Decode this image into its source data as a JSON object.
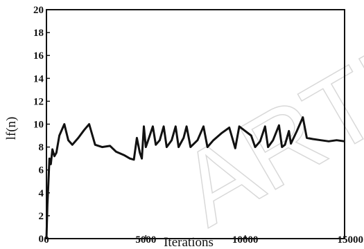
{
  "watermark": "ARTI",
  "chart_data": {
    "type": "line",
    "title": "",
    "xlabel": "Iterations",
    "ylabel": "lf(n)",
    "xlim": [
      0,
      15000
    ],
    "ylim": [
      0,
      20
    ],
    "grid": false,
    "x_ticks": [
      "0",
      "5000",
      "10000",
      "15000"
    ],
    "y_ticks": [
      "0",
      "2",
      "4",
      "6",
      "8",
      "10",
      "12",
      "14",
      "16",
      "18",
      "20"
    ],
    "series": [
      {
        "points": [
          [
            0,
            0
          ],
          [
            50,
            3
          ],
          [
            100,
            5
          ],
          [
            150,
            7
          ],
          [
            220,
            6.5
          ],
          [
            300,
            7.8
          ],
          [
            400,
            7.2
          ],
          [
            500,
            7.5
          ],
          [
            650,
            9
          ],
          [
            900,
            10
          ],
          [
            1100,
            8.6
          ],
          [
            1300,
            8.2
          ],
          [
            1600,
            8.8
          ],
          [
            1900,
            9.5
          ],
          [
            2150,
            10
          ],
          [
            2450,
            8.2
          ],
          [
            2800,
            8
          ],
          [
            3200,
            8.1
          ],
          [
            3500,
            7.6
          ],
          [
            3900,
            7.3
          ],
          [
            4200,
            7
          ],
          [
            4400,
            6.9
          ],
          [
            4550,
            8.8
          ],
          [
            4700,
            7.5
          ],
          [
            4800,
            7
          ],
          [
            4900,
            9.8
          ],
          [
            5000,
            8
          ],
          [
            5100,
            8.5
          ],
          [
            5350,
            9.8
          ],
          [
            5500,
            8.2
          ],
          [
            5700,
            8.6
          ],
          [
            5900,
            9.8
          ],
          [
            6050,
            8
          ],
          [
            6300,
            8.6
          ],
          [
            6500,
            9.8
          ],
          [
            6650,
            8
          ],
          [
            6900,
            8.8
          ],
          [
            7050,
            9.8
          ],
          [
            7250,
            8
          ],
          [
            7600,
            8.6
          ],
          [
            7900,
            9.8
          ],
          [
            8100,
            8
          ],
          [
            8400,
            8.6
          ],
          [
            8800,
            9.2
          ],
          [
            9200,
            9.7
          ],
          [
            9500,
            7.9
          ],
          [
            9700,
            9.8
          ],
          [
            10000,
            9.4
          ],
          [
            10300,
            9
          ],
          [
            10500,
            8
          ],
          [
            10750,
            8.5
          ],
          [
            11000,
            9.8
          ],
          [
            11150,
            8
          ],
          [
            11400,
            8.6
          ],
          [
            11700,
            9.9
          ],
          [
            11850,
            8
          ],
          [
            12000,
            8.2
          ],
          [
            12200,
            9.4
          ],
          [
            12300,
            8.3
          ],
          [
            12600,
            9.4
          ],
          [
            12900,
            10.6
          ],
          [
            13100,
            8.8
          ],
          [
            13400,
            8.7
          ],
          [
            13800,
            8.6
          ],
          [
            14200,
            8.5
          ],
          [
            14600,
            8.6
          ],
          [
            15000,
            8.5
          ]
        ]
      }
    ]
  }
}
